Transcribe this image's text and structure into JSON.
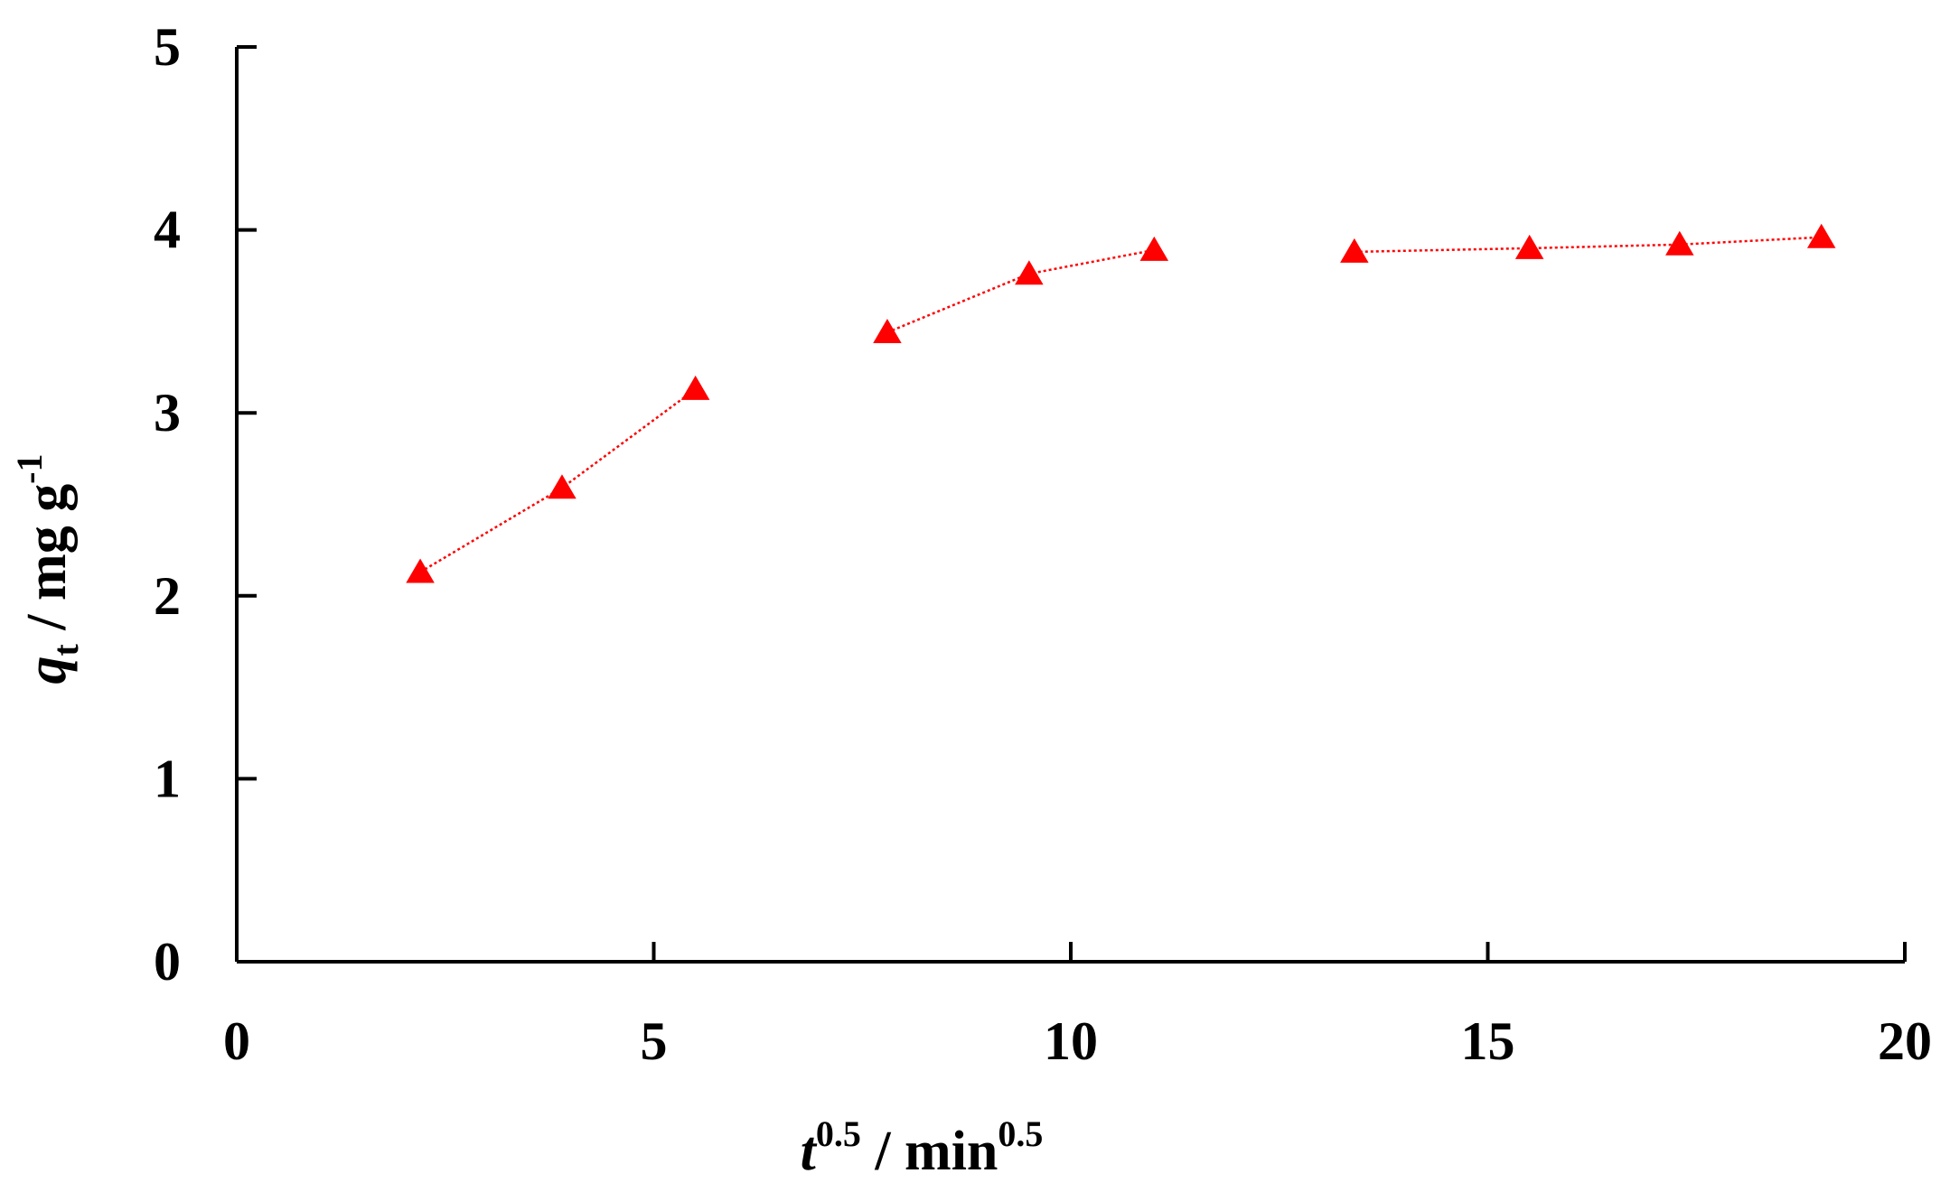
{
  "chart_data": {
    "type": "scatter",
    "title": "",
    "xlabel": {
      "base": "t",
      "base_sup": "0.5",
      "sep": " / ",
      "unit": "min",
      "unit_sup": "0.5"
    },
    "ylabel": {
      "base": "q",
      "base_sub": "t",
      "sep": " / ",
      "unit": "mg g",
      "unit_sup": "-1"
    },
    "xlim": [
      0,
      20
    ],
    "ylim": [
      0,
      5
    ],
    "xticks": [
      0,
      5,
      10,
      15,
      20
    ],
    "yticks": [
      0,
      1,
      2,
      3,
      4,
      5
    ],
    "grid": false,
    "legend": "none",
    "marker": "triangle",
    "marker_color": "#ff0000",
    "line_style": "dotted",
    "line_color": "#ff0000",
    "segments": [
      {
        "x": [
          2.2,
          3.9,
          5.5
        ],
        "y": [
          2.13,
          2.59,
          3.13
        ]
      },
      {
        "x": [
          7.8,
          9.5,
          11.0
        ],
        "y": [
          3.44,
          3.76,
          3.89
        ]
      },
      {
        "x": [
          13.4,
          15.5,
          17.3,
          19.0
        ],
        "y": [
          3.88,
          3.9,
          3.92,
          3.96
        ]
      }
    ]
  }
}
